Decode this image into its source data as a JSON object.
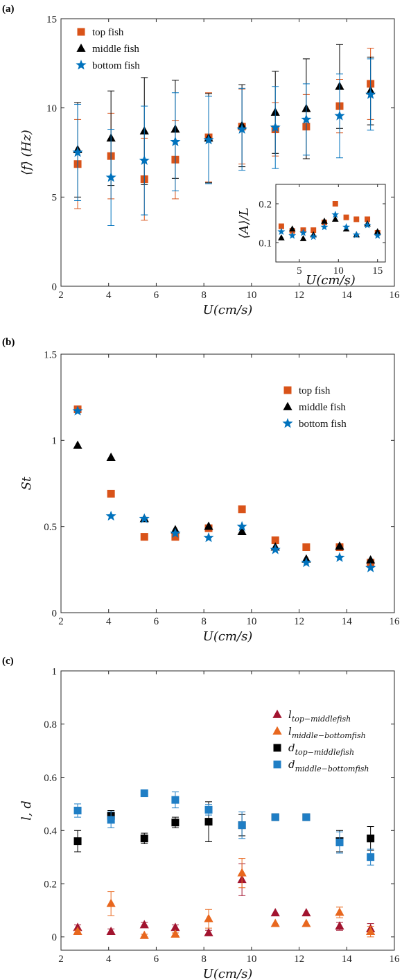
{
  "colors": {
    "top": "#D95319",
    "middle": "#000000",
    "bottom": "#0072BD",
    "lTopMid": "#A2142F",
    "lMidBot": "#E8671E",
    "dTopMid": "#000000",
    "dMidBot": "#1F7EC5"
  },
  "chart_data": [
    {
      "id": "a",
      "panel_label": "(a)",
      "type": "scatter",
      "xlabel": "U(cm/s)",
      "ylabel": "⟨f⟩ (Hz)",
      "xlim": [
        2,
        16
      ],
      "ylim": [
        0,
        15
      ],
      "xticks": [
        2,
        4,
        6,
        8,
        10,
        12,
        14,
        16
      ],
      "yticks": [
        0,
        5,
        10,
        15
      ],
      "legend_position": "top-left",
      "series": [
        {
          "name": "top fish",
          "marker": "square",
          "color_key": "top",
          "x": [
            2.7,
            4.1,
            5.5,
            6.8,
            8.2,
            9.6,
            11.0,
            12.3,
            13.7,
            15.0
          ],
          "y": [
            6.85,
            7.3,
            6.0,
            7.1,
            8.35,
            8.95,
            8.8,
            8.95,
            10.1,
            11.35
          ],
          "err": [
            2.5,
            2.4,
            2.3,
            2.2,
            2.5,
            2.1,
            1.5,
            1.8,
            1.5,
            2.0
          ]
        },
        {
          "name": "middle fish",
          "marker": "triangle",
          "color_key": "middle",
          "x": [
            2.7,
            4.1,
            5.5,
            6.8,
            8.2,
            9.6,
            11.0,
            12.3,
            13.7,
            15.0
          ],
          "y": [
            7.65,
            8.3,
            8.7,
            8.8,
            8.3,
            9.0,
            9.75,
            9.95,
            11.2,
            10.95
          ],
          "err": [
            2.65,
            2.65,
            3.0,
            2.75,
            2.5,
            2.3,
            2.3,
            2.8,
            2.35,
            1.9
          ]
        },
        {
          "name": "bottom fish",
          "marker": "star",
          "color_key": "bottom",
          "x": [
            2.7,
            4.1,
            5.5,
            6.8,
            8.2,
            9.6,
            11.0,
            12.3,
            13.7,
            15.0
          ],
          "y": [
            7.5,
            6.1,
            7.05,
            8.1,
            8.2,
            8.8,
            8.9,
            9.35,
            9.55,
            10.75
          ],
          "err": [
            2.7,
            2.7,
            3.05,
            2.75,
            2.45,
            2.3,
            2.3,
            2.0,
            2.35,
            2.0
          ]
        }
      ],
      "inset": {
        "xlabel": "U(cm/s)",
        "ylabel": "⟨A⟩/L",
        "xlim": [
          2,
          16
        ],
        "ylim": [
          0.05,
          0.25
        ],
        "xticks": [
          5,
          10,
          15
        ],
        "yticks": [
          0.1,
          0.2
        ],
        "series": [
          {
            "name": "top fish",
            "marker": "square",
            "color_key": "top",
            "x": [
              2.7,
              4.1,
              5.5,
              6.8,
              8.2,
              9.6,
              11.0,
              12.3,
              13.7,
              15.0
            ],
            "y": [
              0.142,
              0.13,
              0.132,
              0.132,
              0.152,
              0.2,
              0.165,
              0.16,
              0.16,
              0.125
            ]
          },
          {
            "name": "middle fish",
            "marker": "triangle",
            "color_key": "middle",
            "x": [
              2.7,
              4.1,
              5.5,
              6.8,
              8.2,
              9.6,
              11.0,
              12.3,
              13.7,
              15.0
            ],
            "y": [
              0.112,
              0.135,
              0.11,
              0.12,
              0.155,
              0.16,
              0.135,
              0.12,
              0.148,
              0.128
            ]
          },
          {
            "name": "bottom fish",
            "marker": "star",
            "color_key": "bottom",
            "x": [
              2.7,
              4.1,
              5.5,
              6.8,
              8.2,
              9.6,
              11.0,
              12.3,
              13.7,
              15.0
            ],
            "y": [
              0.128,
              0.118,
              0.125,
              0.115,
              0.14,
              0.172,
              0.14,
              0.12,
              0.145,
              0.118
            ]
          }
        ]
      }
    },
    {
      "id": "b",
      "panel_label": "(b)",
      "type": "scatter",
      "xlabel": "U(cm/s)",
      "ylabel": "St",
      "xlim": [
        2,
        16
      ],
      "ylim": [
        0,
        1.5
      ],
      "xticks": [
        2,
        4,
        6,
        8,
        10,
        12,
        14,
        16
      ],
      "yticks": [
        0,
        0.5,
        1,
        1.5
      ],
      "legend_position": "top-right",
      "series": [
        {
          "name": "top fish",
          "marker": "square",
          "color_key": "top",
          "x": [
            2.7,
            4.1,
            5.5,
            6.8,
            8.2,
            9.6,
            11.0,
            12.3,
            13.7,
            15.0
          ],
          "y": [
            1.18,
            0.69,
            0.44,
            0.44,
            0.49,
            0.6,
            0.42,
            0.38,
            0.38,
            0.29
          ]
        },
        {
          "name": "middle fish",
          "marker": "triangle",
          "color_key": "middle",
          "x": [
            2.7,
            4.1,
            5.5,
            6.8,
            8.2,
            9.6,
            11.0,
            12.3,
            13.7,
            15.0
          ],
          "y": [
            0.97,
            0.9,
            0.545,
            0.48,
            0.5,
            0.47,
            0.38,
            0.31,
            0.385,
            0.305
          ]
        },
        {
          "name": "bottom fish",
          "marker": "star",
          "color_key": "bottom",
          "x": [
            2.7,
            4.1,
            5.5,
            6.8,
            8.2,
            9.6,
            11.0,
            12.3,
            13.7,
            15.0
          ],
          "y": [
            1.17,
            0.56,
            0.545,
            0.46,
            0.435,
            0.5,
            0.365,
            0.29,
            0.32,
            0.26
          ]
        }
      ]
    },
    {
      "id": "c",
      "panel_label": "(c)",
      "type": "scatter",
      "xlabel": "U(cm/s)",
      "ylabel": "l, d",
      "xlim": [
        2,
        16
      ],
      "ylim": [
        -0.05,
        1
      ],
      "xticks": [
        2,
        4,
        6,
        8,
        10,
        12,
        14,
        16
      ],
      "yticks": [
        0,
        0.2,
        0.4,
        0.6,
        0.8,
        1
      ],
      "legend_position": "top-right",
      "series": [
        {
          "name": "l",
          "subscript": "top−middlefish",
          "marker": "triangle",
          "color_key": "lTopMid",
          "x": [
            2.7,
            4.1,
            5.5,
            6.8,
            8.2,
            9.6,
            11.0,
            12.3,
            13.7,
            15.0
          ],
          "y": [
            0.035,
            0.02,
            0.045,
            0.035,
            0.015,
            0.215,
            0.09,
            0.09,
            0.04,
            0.03
          ],
          "err": [
            0.01,
            0.01,
            0.01,
            0.01,
            0.01,
            0.06,
            0.0,
            0.0,
            0.015,
            0.02
          ]
        },
        {
          "name": "l",
          "subscript": "middle−bottomfish",
          "marker": "triangle",
          "color_key": "lMidBot",
          "x": [
            2.7,
            4.1,
            5.5,
            6.8,
            8.2,
            9.6,
            11.0,
            12.3,
            13.7,
            15.0
          ],
          "y": [
            0.02,
            0.125,
            0.005,
            0.01,
            0.068,
            0.24,
            0.05,
            0.05,
            0.092,
            0.02
          ],
          "err": [
            0.005,
            0.045,
            0.005,
            0.005,
            0.035,
            0.055,
            0.0,
            0.0,
            0.02,
            0.02
          ]
        },
        {
          "name": "d",
          "subscript": "top−middlefish",
          "marker": "square",
          "color_key": "dTopMid",
          "x": [
            2.7,
            4.1,
            5.5,
            6.8,
            8.2,
            9.6,
            11.0,
            12.3,
            13.7,
            15.0
          ],
          "y": [
            0.36,
            0.455,
            0.37,
            0.43,
            0.433,
            0.42,
            0.45,
            0.45,
            0.36,
            0.37
          ],
          "err": [
            0.04,
            0.02,
            0.02,
            0.02,
            0.075,
            0.04,
            0.01,
            0.01,
            0.04,
            0.045
          ]
        },
        {
          "name": "d",
          "subscript": "middle−bottomfish",
          "marker": "square",
          "color_key": "dMidBot",
          "x": [
            2.7,
            4.1,
            5.5,
            6.8,
            8.2,
            9.6,
            11.0,
            12.3,
            13.7,
            15.0
          ],
          "y": [
            0.475,
            0.44,
            0.54,
            0.515,
            0.478,
            0.42,
            0.45,
            0.45,
            0.355,
            0.3
          ],
          "err": [
            0.025,
            0.03,
            0.0,
            0.03,
            0.02,
            0.05,
            0.01,
            0.01,
            0.04,
            0.03
          ]
        }
      ]
    }
  ]
}
